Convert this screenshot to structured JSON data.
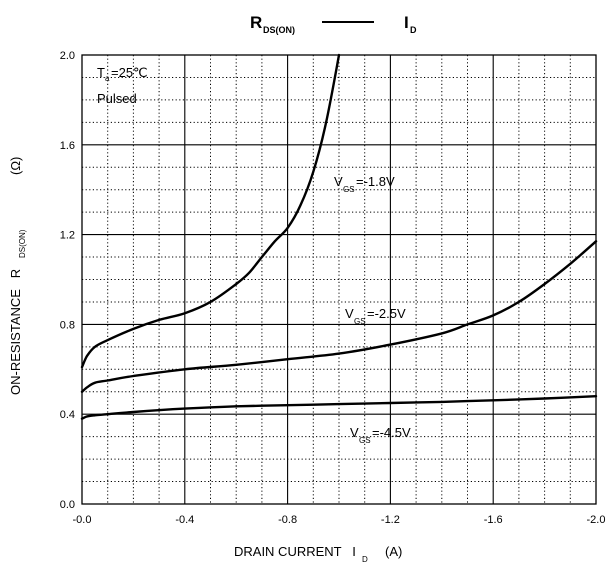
{
  "chart_data": {
    "type": "line",
    "title": {
      "left_main": "R",
      "left_sub": "DS(ON)",
      "right_main": "I",
      "right_sub": "D"
    },
    "xlabel": {
      "main": "DRAIN CURRENT   I",
      "sub": "D",
      "unit": "(A)"
    },
    "ylabel": {
      "main": "ON-RESISTANCE   R",
      "sub": "DS(ON)",
      "unit": "(Ω)"
    },
    "xlim": [
      0,
      -2.0
    ],
    "ylim": [
      0,
      2.0
    ],
    "x_ticks": [
      "-0.0",
      "-0.4",
      "-0.8",
      "-1.2",
      "-1.6",
      "-2.0"
    ],
    "x_tick_values": [
      0,
      -0.4,
      -0.8,
      -1.2,
      -1.6,
      -2.0
    ],
    "y_ticks": [
      "0.0",
      "0.4",
      "0.8",
      "1.2",
      "1.6",
      "2.0"
    ],
    "y_tick_values": [
      0,
      0.4,
      0.8,
      1.2,
      1.6,
      2.0
    ],
    "grid": true,
    "conditions": {
      "temp_main": "T",
      "temp_sub": "a",
      "temp_value": "=25℃",
      "mode": "Pulsed"
    },
    "series": [
      {
        "name": "VGS=-1.8V",
        "label_main": "V",
        "label_sub": "GS",
        "label_value": "=-1.8V",
        "x": [
          0,
          -0.02,
          -0.05,
          -0.1,
          -0.2,
          -0.3,
          -0.4,
          -0.5,
          -0.6,
          -0.65,
          -0.7,
          -0.75,
          -0.8,
          -0.85,
          -0.9,
          -0.95,
          -1.0
        ],
        "y": [
          0.61,
          0.66,
          0.7,
          0.73,
          0.78,
          0.82,
          0.85,
          0.9,
          0.98,
          1.03,
          1.1,
          1.17,
          1.23,
          1.33,
          1.48,
          1.7,
          2.0
        ]
      },
      {
        "name": "VGS=-2.5V",
        "label_main": "V",
        "label_sub": "GS",
        "label_value": "=-2.5V",
        "x": [
          0,
          -0.02,
          -0.05,
          -0.1,
          -0.2,
          -0.4,
          -0.6,
          -0.8,
          -1.0,
          -1.2,
          -1.4,
          -1.5,
          -1.6,
          -1.7,
          -1.8,
          -1.9,
          -2.0
        ],
        "y": [
          0.5,
          0.52,
          0.54,
          0.55,
          0.57,
          0.6,
          0.62,
          0.645,
          0.67,
          0.71,
          0.76,
          0.8,
          0.84,
          0.9,
          0.98,
          1.07,
          1.17
        ]
      },
      {
        "name": "VGS=-4.5V",
        "label_main": "V",
        "label_sub": "GS",
        "label_value": "=-4.5V",
        "x": [
          0,
          -0.02,
          -0.05,
          -0.1,
          -0.2,
          -0.4,
          -0.6,
          -0.8,
          -1.0,
          -1.2,
          -1.4,
          -1.6,
          -1.8,
          -2.0
        ],
        "y": [
          0.38,
          0.39,
          0.395,
          0.4,
          0.41,
          0.425,
          0.435,
          0.44,
          0.445,
          0.45,
          0.455,
          0.462,
          0.47,
          0.48
        ]
      }
    ]
  }
}
